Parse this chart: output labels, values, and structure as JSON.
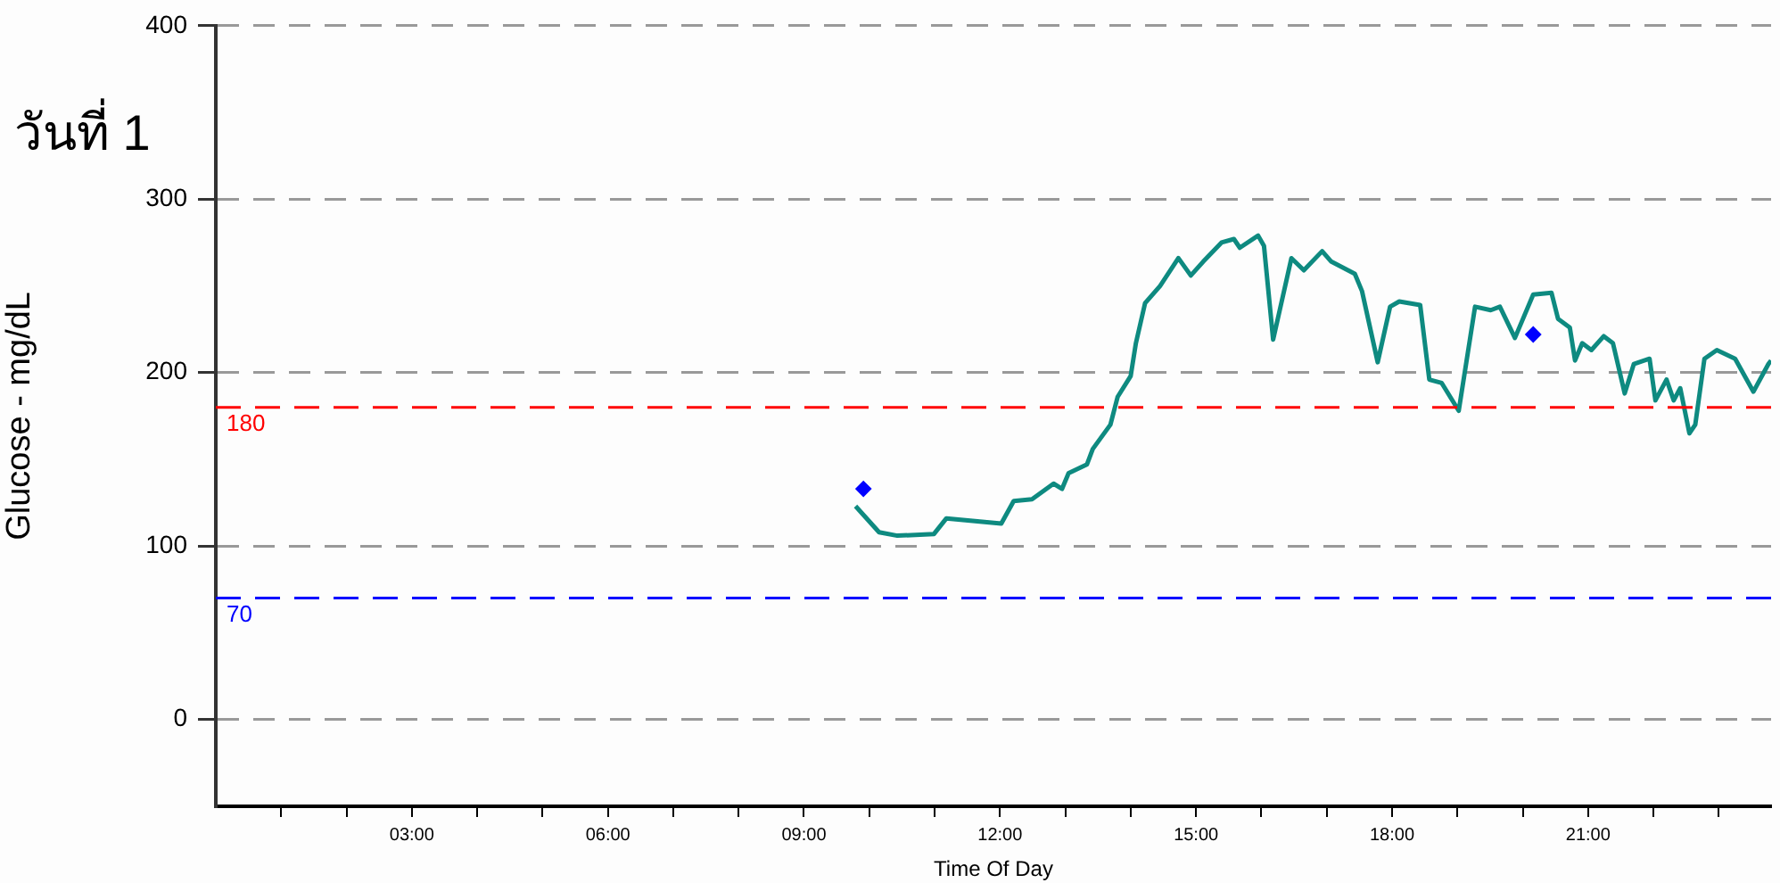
{
  "chart_data": {
    "type": "line",
    "title": "วันที่ 1",
    "xlabel": "Time Of Day",
    "ylabel": "Glucose - mg/dL",
    "xlim": [
      0,
      23.8
    ],
    "ylim": [
      -50,
      400
    ],
    "xticks": [
      {
        "value": 1,
        "label": null
      },
      {
        "value": 2,
        "label": null
      },
      {
        "value": 3,
        "label": "03:00"
      },
      {
        "value": 4,
        "label": null
      },
      {
        "value": 5,
        "label": null
      },
      {
        "value": 6,
        "label": "06:00"
      },
      {
        "value": 7,
        "label": null
      },
      {
        "value": 8,
        "label": null
      },
      {
        "value": 9,
        "label": "09:00"
      },
      {
        "value": 10,
        "label": null
      },
      {
        "value": 11,
        "label": null
      },
      {
        "value": 12,
        "label": "12:00"
      },
      {
        "value": 13,
        "label": null
      },
      {
        "value": 14,
        "label": null
      },
      {
        "value": 15,
        "label": "15:00"
      },
      {
        "value": 16,
        "label": null
      },
      {
        "value": 17,
        "label": null
      },
      {
        "value": 18,
        "label": "18:00"
      },
      {
        "value": 19,
        "label": null
      },
      {
        "value": 20,
        "label": null
      },
      {
        "value": 21,
        "label": "21:00"
      },
      {
        "value": 22,
        "label": null
      },
      {
        "value": 23,
        "label": null
      }
    ],
    "yticks": [
      0,
      100,
      200,
      300,
      400
    ],
    "grid": "y",
    "legend": false,
    "line_style": "solid",
    "marker": "none",
    "ref_lines": [
      {
        "axis": "y",
        "value": 180,
        "label": "180",
        "color": "#ff0000",
        "line_style": "dashed"
      },
      {
        "axis": "y",
        "value": 70,
        "label": "70",
        "color": "#0000ff",
        "line_style": "dashed"
      }
    ],
    "series": [
      {
        "type": "line",
        "color": "#0e8a80",
        "x": [
          9.79,
          10.15,
          10.43,
          10.99,
          11.18,
          12.02,
          12.21,
          12.49,
          12.82,
          12.95,
          13.05,
          13.33,
          13.42,
          13.69,
          13.8,
          14.0,
          14.08,
          14.22,
          14.45,
          14.73,
          14.92,
          15.11,
          15.39,
          15.58,
          15.67,
          15.95,
          16.04,
          16.18,
          16.46,
          16.65,
          16.93,
          17.07,
          17.43,
          17.54,
          17.78,
          17.97,
          18.11,
          18.43,
          18.57,
          18.76,
          19.02,
          19.27,
          19.51,
          19.65,
          19.88,
          20.16,
          20.44,
          20.54,
          20.72,
          20.8,
          20.91,
          21.05,
          21.24,
          21.38,
          21.56,
          21.7,
          21.94,
          22.03,
          22.2,
          22.31,
          22.41,
          22.55,
          22.64,
          22.78,
          22.97,
          23.25,
          23.53,
          23.76,
          23.8
        ],
        "values": [
          123,
          108,
          106,
          107,
          116,
          113,
          126,
          127,
          136,
          133,
          142,
          147,
          156,
          170,
          186,
          198,
          217,
          240,
          250,
          266,
          256,
          264,
          275,
          277,
          272,
          279,
          273,
          219,
          266,
          259,
          270,
          264,
          257,
          247,
          206,
          238,
          241,
          239,
          196,
          194,
          178,
          238,
          236,
          238,
          220,
          245,
          246,
          231,
          226,
          207,
          217,
          213,
          221,
          217,
          188,
          205,
          208,
          184,
          196,
          184,
          191,
          165,
          170,
          208,
          213,
          208,
          189,
          205,
          207
        ]
      },
      {
        "type": "scatter",
        "color": "#0000ff",
        "marker": "diamond",
        "x": [
          9.91,
          20.16
        ],
        "values": [
          133,
          222
        ]
      }
    ]
  }
}
